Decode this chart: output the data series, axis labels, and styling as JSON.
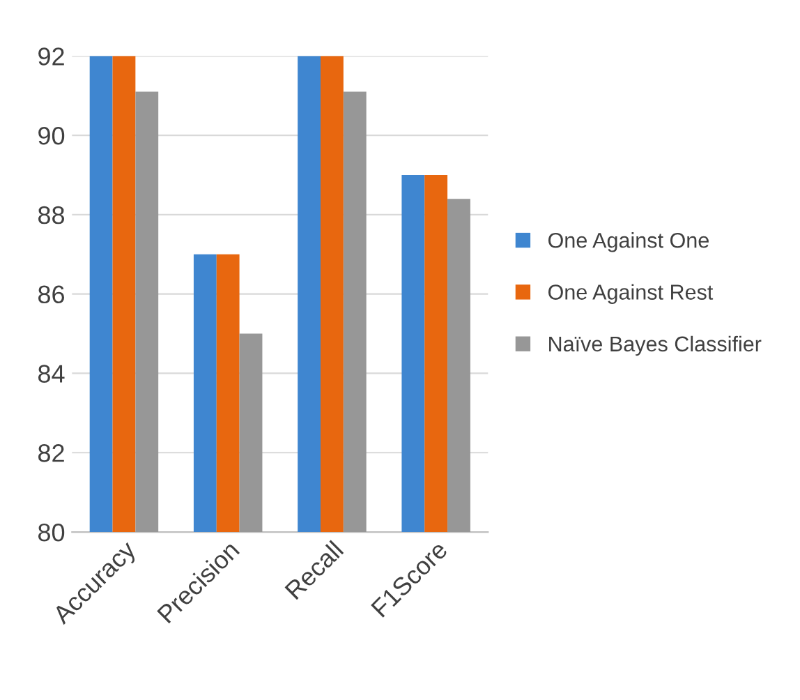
{
  "chart_data": {
    "type": "bar",
    "categories": [
      "Accuracy",
      "Precision",
      "Recall",
      "F1Score"
    ],
    "series": [
      {
        "name": "One Against One",
        "color": "#3f86d0",
        "values": [
          92,
          87,
          92,
          89
        ]
      },
      {
        "name": "One Against Rest",
        "color": "#e8670f",
        "values": [
          92,
          87,
          92,
          89
        ]
      },
      {
        "name": "Naïve Bayes Classifier",
        "color": "#979797",
        "values": [
          91.1,
          85,
          91.1,
          88.4
        ]
      }
    ],
    "ylim": [
      80,
      92
    ],
    "yticks": [
      80,
      82,
      84,
      86,
      88,
      90,
      92
    ],
    "grid": "y",
    "legend": "right"
  }
}
